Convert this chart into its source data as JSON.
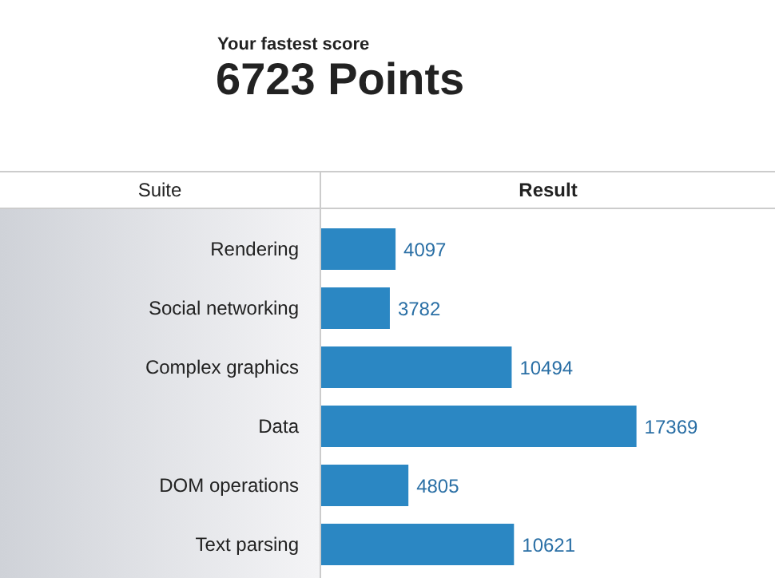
{
  "chart_data": {
    "type": "bar",
    "orientation": "horizontal",
    "subtitle": "Your fastest score",
    "title": "6723 Points",
    "ylabel": "Suite",
    "xlabel": "Result",
    "categories": [
      "Rendering",
      "Social networking",
      "Complex graphics",
      "Data",
      "DOM operations",
      "Text parsing"
    ],
    "values": [
      4097,
      3782,
      10494,
      17369,
      4805,
      10621
    ],
    "color": "#2b87c3",
    "xlim": [
      0,
      25000
    ],
    "data_labels": true,
    "tick_labels": "y",
    "grid": false
  }
}
